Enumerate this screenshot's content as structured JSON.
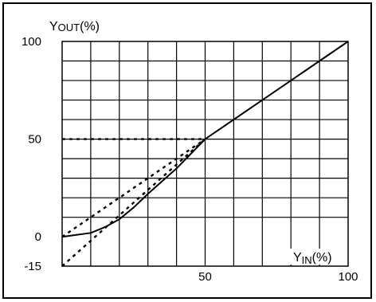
{
  "chart_data": {
    "type": "line",
    "ylabel": {
      "main": "Y",
      "sub": "OUT",
      "unit": "(%)"
    },
    "xlabel": {
      "main": "Y",
      "sub": "IN",
      "unit": "(%)"
    },
    "xlim": [
      0,
      100
    ],
    "ylim": [
      -15,
      100
    ],
    "x_ticks": [
      {
        "v": 50,
        "label": "50"
      },
      {
        "v": 100,
        "label": "100"
      }
    ],
    "y_ticks": [
      {
        "v": 100,
        "label": "100"
      },
      {
        "v": 50,
        "label": "50"
      },
      {
        "v": 0,
        "label": "0"
      },
      {
        "v": -15,
        "label": "-15"
      }
    ],
    "grid": true,
    "grid_step": 10,
    "series": [
      {
        "style": "solid",
        "points": [
          [
            0,
            0
          ],
          [
            5,
            1
          ],
          [
            10,
            2
          ],
          [
            15,
            5
          ],
          [
            20,
            9
          ],
          [
            25,
            15
          ],
          [
            30,
            22
          ],
          [
            40,
            35
          ],
          [
            50,
            50
          ],
          [
            100,
            100
          ]
        ]
      },
      {
        "style": "dotted",
        "points": [
          [
            0,
            0
          ],
          [
            50,
            50
          ]
        ]
      },
      {
        "style": "dotted",
        "points": [
          [
            0,
            -15
          ],
          [
            50,
            50
          ]
        ]
      },
      {
        "style": "dotted",
        "points": [
          [
            0,
            50
          ],
          [
            50,
            50
          ]
        ]
      }
    ]
  }
}
